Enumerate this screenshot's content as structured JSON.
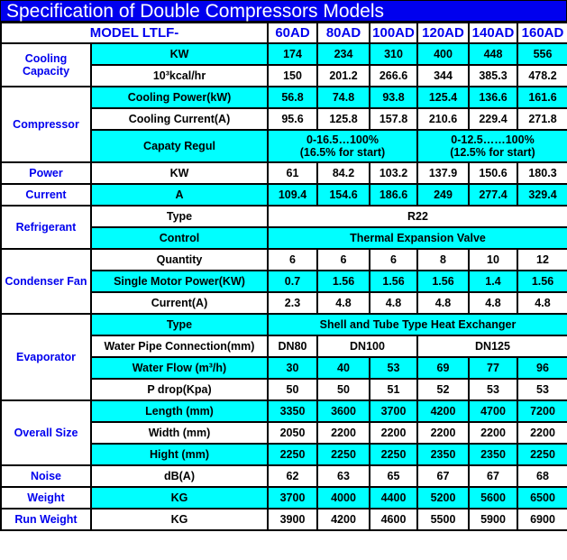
{
  "title": "Specification of Double Compressors Models",
  "header": {
    "label": "MODEL LTLF-",
    "models": [
      "60AD",
      "80AD",
      "100AD",
      "120AD",
      "140AD",
      "160AD"
    ]
  },
  "colors": {
    "title_bg": "#0000ee",
    "highlight": "#00ffff",
    "group_text": "#0000ee"
  },
  "rows": [
    {
      "group": "Cooling Capacity",
      "span": 2,
      "param": "KW",
      "cyan": true,
      "cells": [
        {
          "t": "174"
        },
        {
          "t": "234"
        },
        {
          "t": "310"
        },
        {
          "t": "400"
        },
        {
          "t": "448"
        },
        {
          "t": "556"
        }
      ]
    },
    {
      "param": "10³kcal/hr",
      "cyan": false,
      "cells": [
        {
          "t": "150"
        },
        {
          "t": "201.2"
        },
        {
          "t": "266.6"
        },
        {
          "t": "344"
        },
        {
          "t": "385.3"
        },
        {
          "t": "478.2"
        }
      ]
    },
    {
      "group": "Compressor",
      "span": 3,
      "param": "Cooling Power(kW)",
      "cyan": true,
      "cells": [
        {
          "t": "56.8"
        },
        {
          "t": "74.8"
        },
        {
          "t": "93.8"
        },
        {
          "t": "125.4"
        },
        {
          "t": "136.6"
        },
        {
          "t": "161.6"
        }
      ]
    },
    {
      "param": "Cooling Current(A)",
      "cyan": false,
      "cells": [
        {
          "t": "95.6"
        },
        {
          "t": "125.8"
        },
        {
          "t": "157.8"
        },
        {
          "t": "210.6"
        },
        {
          "t": "229.4"
        },
        {
          "t": "271.8"
        }
      ]
    },
    {
      "param": "Capaty Regul",
      "cyan": true,
      "tall": true,
      "cells": [
        {
          "t": "0-16.5…100%\n(16.5%  for start)",
          "c": 3
        },
        {
          "t": "0-12.5……100%\n(12.5% for start)",
          "c": 3
        }
      ]
    },
    {
      "group": "Power",
      "span": 1,
      "param": "KW",
      "cyan": false,
      "cells": [
        {
          "t": "61"
        },
        {
          "t": "84.2"
        },
        {
          "t": "103.2"
        },
        {
          "t": "137.9"
        },
        {
          "t": "150.6"
        },
        {
          "t": "180.3"
        }
      ]
    },
    {
      "group": "Current",
      "span": 1,
      "param": "A",
      "cyan": true,
      "cells": [
        {
          "t": "109.4"
        },
        {
          "t": "154.6"
        },
        {
          "t": "186.6"
        },
        {
          "t": "249"
        },
        {
          "t": "277.4"
        },
        {
          "t": "329.4"
        }
      ]
    },
    {
      "group": "Refrigerant",
      "span": 2,
      "param": "Type",
      "cyan": false,
      "cells": [
        {
          "t": "R22",
          "c": 6
        }
      ]
    },
    {
      "param": "Control",
      "cyan": true,
      "cells": [
        {
          "t": "Thermal Expansion Valve",
          "c": 6
        }
      ]
    },
    {
      "group": "Condenser Fan",
      "span": 3,
      "param": "Quantity",
      "cyan": false,
      "cells": [
        {
          "t": "6"
        },
        {
          "t": "6"
        },
        {
          "t": "6"
        },
        {
          "t": "8"
        },
        {
          "t": "10"
        },
        {
          "t": "12"
        }
      ]
    },
    {
      "param": "Single Motor Power(KW)",
      "cyan": true,
      "cells": [
        {
          "t": "0.7"
        },
        {
          "t": "1.56"
        },
        {
          "t": "1.56"
        },
        {
          "t": "1.56"
        },
        {
          "t": "1.4"
        },
        {
          "t": "1.56"
        }
      ]
    },
    {
      "param": "Current(A)",
      "cyan": false,
      "cells": [
        {
          "t": "2.3"
        },
        {
          "t": "4.8"
        },
        {
          "t": "4.8"
        },
        {
          "t": "4.8"
        },
        {
          "t": "4.8"
        },
        {
          "t": "4.8"
        }
      ]
    },
    {
      "group": "Evaporator",
      "span": 4,
      "param": "Type",
      "cyan": true,
      "cells": [
        {
          "t": "Shell and Tube Type Heat Exchanger",
          "c": 6
        }
      ]
    },
    {
      "param": "Water Pipe Connection(mm)",
      "cyan": false,
      "cells": [
        {
          "t": "DN80"
        },
        {
          "t": "DN100",
          "c": 2
        },
        {
          "t": "DN125",
          "c": 3
        }
      ]
    },
    {
      "param": "Water Flow (m³/h)",
      "cyan": true,
      "cells": [
        {
          "t": "30"
        },
        {
          "t": "40"
        },
        {
          "t": "53"
        },
        {
          "t": "69"
        },
        {
          "t": "77"
        },
        {
          "t": "96"
        }
      ]
    },
    {
      "param": "P drop(Kpa)",
      "cyan": false,
      "cells": [
        {
          "t": "50"
        },
        {
          "t": "50"
        },
        {
          "t": "51"
        },
        {
          "t": "52"
        },
        {
          "t": "53"
        },
        {
          "t": "53"
        }
      ]
    },
    {
      "group": "Overall Size",
      "span": 3,
      "param": "Length (mm)",
      "cyan": true,
      "cells": [
        {
          "t": "3350"
        },
        {
          "t": "3600"
        },
        {
          "t": "3700"
        },
        {
          "t": "4200"
        },
        {
          "t": "4700"
        },
        {
          "t": "7200"
        }
      ]
    },
    {
      "param": "Width (mm)",
      "cyan": false,
      "cells": [
        {
          "t": "2050"
        },
        {
          "t": "2200"
        },
        {
          "t": "2200"
        },
        {
          "t": "2200"
        },
        {
          "t": "2200"
        },
        {
          "t": "2200"
        }
      ]
    },
    {
      "param": "Hight (mm)",
      "cyan": true,
      "cells": [
        {
          "t": "2250"
        },
        {
          "t": "2250"
        },
        {
          "t": "2250"
        },
        {
          "t": "2350"
        },
        {
          "t": "2350"
        },
        {
          "t": "2250"
        }
      ]
    },
    {
      "group": "Noise",
      "span": 1,
      "param": "dB(A)",
      "cyan": false,
      "cells": [
        {
          "t": "62"
        },
        {
          "t": "63"
        },
        {
          "t": "65"
        },
        {
          "t": "67"
        },
        {
          "t": "67"
        },
        {
          "t": "68"
        }
      ]
    },
    {
      "group": "Weight",
      "span": 1,
      "param": "KG",
      "cyan": true,
      "cells": [
        {
          "t": "3700"
        },
        {
          "t": "4000"
        },
        {
          "t": "4400"
        },
        {
          "t": "5200"
        },
        {
          "t": "5600"
        },
        {
          "t": "6500"
        }
      ]
    },
    {
      "group": "Run Weight",
      "span": 1,
      "param": "KG",
      "cyan": false,
      "cells": [
        {
          "t": "3900"
        },
        {
          "t": "4200"
        },
        {
          "t": "4600"
        },
        {
          "t": "5500"
        },
        {
          "t": "5900"
        },
        {
          "t": "6900"
        }
      ]
    }
  ]
}
